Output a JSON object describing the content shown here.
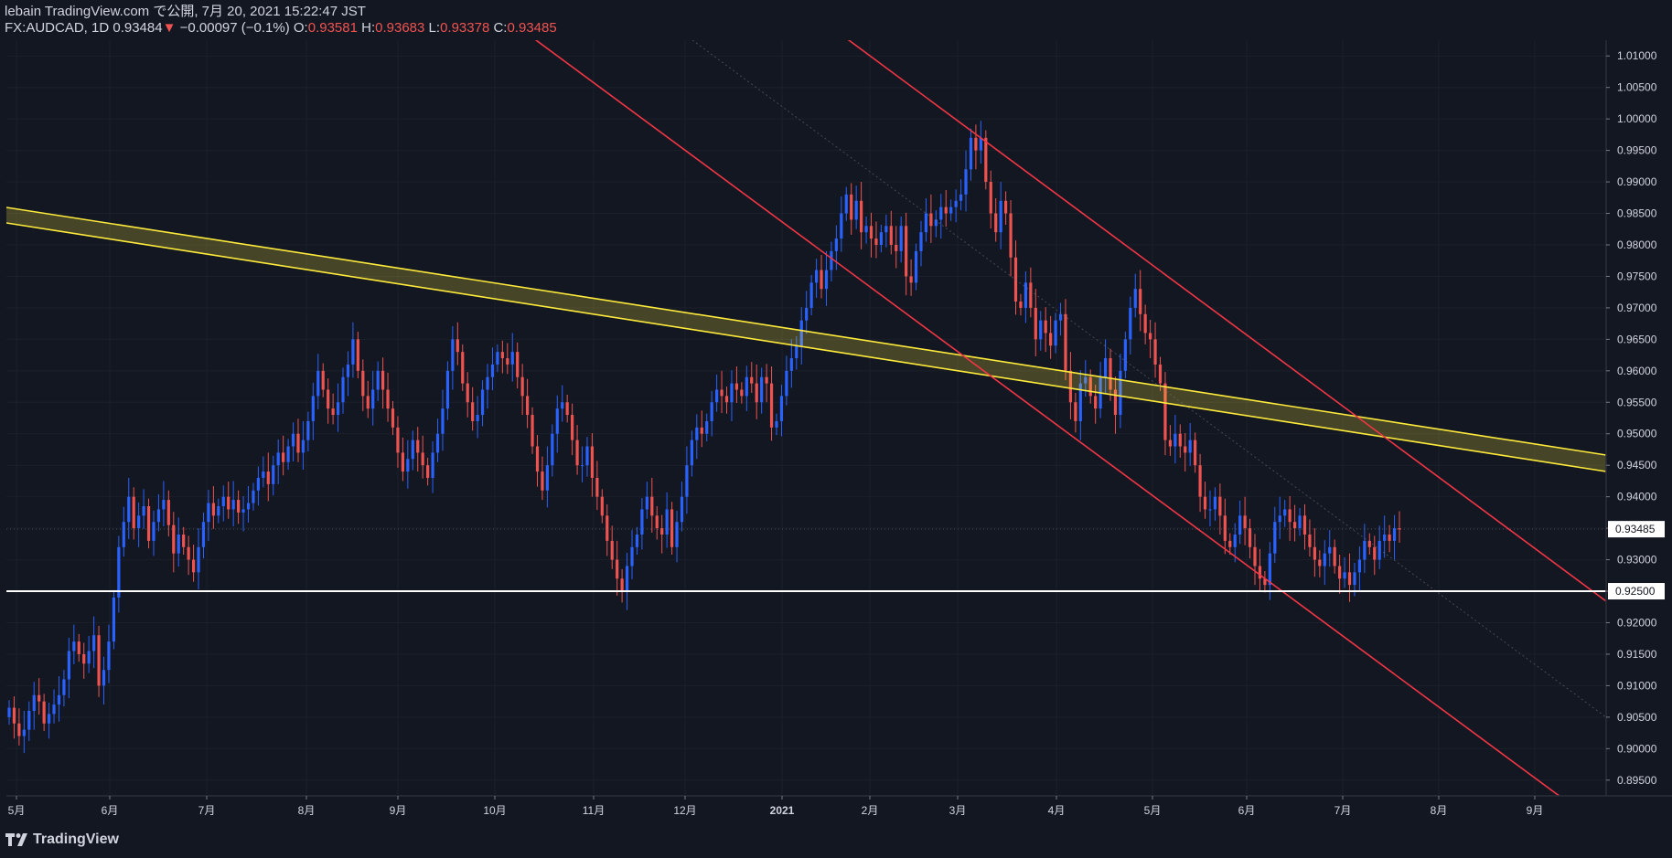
{
  "header": {
    "line1": "lebain TradingView.com で公開, 7月 20, 2021 15:22:47 JST",
    "symbol": "FX:AUDCAD, 1D",
    "last": "0.93484",
    "arrow": "▼",
    "change": "−0.00097 (−0.1%)",
    "o_label": "O:",
    "o": "0.93581",
    "h_label": "H:",
    "h": "0.93683",
    "l_label": "L:",
    "l": "0.93378",
    "c_label": "C:",
    "c": "0.93485"
  },
  "footer": {
    "brand": "TradingView"
  },
  "colors": {
    "background": "#131722",
    "up": "#2962ff",
    "down": "#ef5350",
    "band": "#ffeb3b",
    "channel": "#f23645",
    "support": "#ffffff",
    "grid": "#2a2e39"
  },
  "chart_data": {
    "type": "candlestick",
    "ylim": [
      0.8925,
      1.0125
    ],
    "y_ticks": [
      "1.01000",
      "1.00500",
      "1.00000",
      "0.99500",
      "0.99000",
      "0.98500",
      "0.98000",
      "0.97500",
      "0.97000",
      "0.96500",
      "0.96000",
      "0.95500",
      "0.95000",
      "0.94500",
      "0.94000",
      "0.93500",
      "0.93000",
      "0.92500",
      "0.92000",
      "0.91500",
      "0.91000",
      "0.90500",
      "0.90000",
      "0.89500"
    ],
    "x_ticks": [
      "5月",
      "6月",
      "7月",
      "8月",
      "9月",
      "10月",
      "11月",
      "12月",
      "2021",
      "2月",
      "3月",
      "4月",
      "5月",
      "6月",
      "7月",
      "8月",
      "9月"
    ],
    "price_label": "0.93485",
    "support_label": "0.92500",
    "support_level": 0.925,
    "close_series_2020_05_to_2021_07": [
      0.9065,
      0.904,
      0.902,
      0.903,
      0.906,
      0.9085,
      0.9075,
      0.904,
      0.9055,
      0.907,
      0.9085,
      0.911,
      0.9155,
      0.917,
      0.915,
      0.9135,
      0.9155,
      0.918,
      0.91,
      0.9125,
      0.917,
      0.924,
      0.932,
      0.936,
      0.94,
      0.935,
      0.937,
      0.9385,
      0.933,
      0.936,
      0.938,
      0.9395,
      0.9355,
      0.931,
      0.934,
      0.932,
      0.93,
      0.928,
      0.932,
      0.936,
      0.939,
      0.937,
      0.9385,
      0.94,
      0.938,
      0.9395,
      0.9375,
      0.938,
      0.939,
      0.941,
      0.943,
      0.944,
      0.942,
      0.945,
      0.947,
      0.9455,
      0.948,
      0.95,
      0.947,
      0.949,
      0.952,
      0.956,
      0.96,
      0.957,
      0.954,
      0.953,
      0.955,
      0.959,
      0.961,
      0.965,
      0.96,
      0.956,
      0.954,
      0.957,
      0.96,
      0.957,
      0.954,
      0.951,
      0.947,
      0.944,
      0.946,
      0.949,
      0.947,
      0.945,
      0.943,
      0.947,
      0.95,
      0.954,
      0.96,
      0.965,
      0.963,
      0.958,
      0.955,
      0.952,
      0.953,
      0.957,
      0.959,
      0.961,
      0.963,
      0.962,
      0.961,
      0.963,
      0.959,
      0.956,
      0.953,
      0.948,
      0.944,
      0.941,
      0.945,
      0.95,
      0.954,
      0.955,
      0.953,
      0.949,
      0.945,
      0.945,
      0.948,
      0.943,
      0.94,
      0.937,
      0.933,
      0.93,
      0.927,
      0.925,
      0.929,
      0.932,
      0.934,
      0.938,
      0.94,
      0.937,
      0.935,
      0.934,
      0.938,
      0.932,
      0.936,
      0.94,
      0.945,
      0.949,
      0.951,
      0.95,
      0.952,
      0.955,
      0.957,
      0.956,
      0.955,
      0.958,
      0.957,
      0.956,
      0.959,
      0.958,
      0.955,
      0.959,
      0.958,
      0.951,
      0.952,
      0.956,
      0.96,
      0.962,
      0.964,
      0.968,
      0.97,
      0.974,
      0.976,
      0.973,
      0.976,
      0.979,
      0.981,
      0.985,
      0.988,
      0.984,
      0.987,
      0.982,
      0.983,
      0.981,
      0.98,
      0.982,
      0.983,
      0.98,
      0.979,
      0.983,
      0.975,
      0.974,
      0.979,
      0.982,
      0.985,
      0.983,
      0.984,
      0.986,
      0.985,
      0.986,
      0.987,
      0.988,
      0.992,
      0.997,
      0.995,
      0.997,
      0.99,
      0.985,
      0.982,
      0.987,
      0.985,
      0.978,
      0.971,
      0.97,
      0.974,
      0.97,
      0.965,
      0.968,
      0.966,
      0.964,
      0.968,
      0.969,
      0.96,
      0.955,
      0.952,
      0.958,
      0.959,
      0.956,
      0.954,
      0.959,
      0.962,
      0.957,
      0.953,
      0.96,
      0.965,
      0.97,
      0.973,
      0.969,
      0.966,
      0.965,
      0.961,
      0.958,
      0.949,
      0.948,
      0.95,
      0.948,
      0.947,
      0.949,
      0.945,
      0.94,
      0.938,
      0.938,
      0.94,
      0.937,
      0.933,
      0.932,
      0.934,
      0.937,
      0.935,
      0.932,
      0.929,
      0.927,
      0.926,
      0.931,
      0.936,
      0.937,
      0.938,
      0.936,
      0.935,
      0.937,
      0.934,
      0.932,
      0.93,
      0.929,
      0.931,
      0.932,
      0.929,
      0.927,
      0.928,
      0.926,
      0.928,
      0.93,
      0.933,
      0.932,
      0.93,
      0.933,
      0.934,
      0.933,
      0.935,
      0.9348
    ]
  }
}
